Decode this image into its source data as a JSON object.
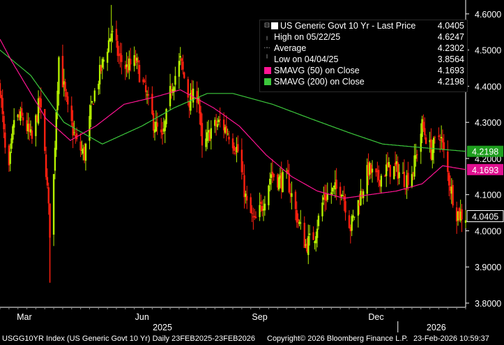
{
  "chart_data": {
    "type": "candlestick",
    "title": "USGG10YR Index (US Generic Govt 10 Yr) Daily 23FEB2025-23FEB2026",
    "ylim": [
      3.8,
      4.65
    ],
    "y_ticks": [
      3.8,
      3.9,
      4.0,
      4.1,
      4.2,
      4.3,
      4.4,
      4.5,
      4.6
    ],
    "y_tick_labels": [
      "3.8000",
      "3.9000",
      "4.0000",
      "4.1000",
      "4.2000",
      "4.3000",
      "4.4000",
      "4.5000",
      "4.6000"
    ],
    "x_range": [
      "2025-02-24",
      "2026-02-23"
    ],
    "x_tick_labels": [
      {
        "label": "Mar",
        "date": "2025-03-15"
      },
      {
        "label": "Jun",
        "date": "2025-06-15"
      },
      {
        "label": "Sep",
        "date": "2025-09-15"
      },
      {
        "label": "Dec",
        "date": "2025-12-15"
      }
    ],
    "x_year_labels": [
      {
        "label": "2025",
        "date": "2025-07-01"
      },
      {
        "label": "2026",
        "date": "2026-01-31"
      }
    ],
    "close_anchors": [
      [
        "2025-02-24",
        4.4
      ],
      [
        "2025-02-28",
        4.22
      ],
      [
        "2025-03-03",
        4.16
      ],
      [
        "2025-03-07",
        4.31
      ],
      [
        "2025-03-14",
        4.31
      ],
      [
        "2025-03-21",
        4.25
      ],
      [
        "2025-03-27",
        4.36
      ],
      [
        "2025-04-01",
        4.17
      ],
      [
        "2025-04-04",
        4.0
      ],
      [
        "2025-04-07",
        4.15
      ],
      [
        "2025-04-09",
        4.34
      ],
      [
        "2025-04-11",
        4.48
      ],
      [
        "2025-04-18",
        4.33
      ],
      [
        "2025-04-25",
        4.24
      ],
      [
        "2025-05-01",
        4.21
      ],
      [
        "2025-05-08",
        4.37
      ],
      [
        "2025-05-15",
        4.46
      ],
      [
        "2025-05-22",
        4.55
      ],
      [
        "2025-05-28",
        4.48
      ],
      [
        "2025-06-03",
        4.45
      ],
      [
        "2025-06-10",
        4.47
      ],
      [
        "2025-06-17",
        4.39
      ],
      [
        "2025-06-24",
        4.3
      ],
      [
        "2025-07-01",
        4.25
      ],
      [
        "2025-07-08",
        4.4
      ],
      [
        "2025-07-15",
        4.47
      ],
      [
        "2025-07-22",
        4.36
      ],
      [
        "2025-07-29",
        4.38
      ],
      [
        "2025-08-01",
        4.22
      ],
      [
        "2025-08-08",
        4.28
      ],
      [
        "2025-08-15",
        4.3
      ],
      [
        "2025-08-22",
        4.27
      ],
      [
        "2025-08-29",
        4.22
      ],
      [
        "2025-09-05",
        4.07
      ],
      [
        "2025-09-11",
        4.02
      ],
      [
        "2025-09-17",
        4.07
      ],
      [
        "2025-09-24",
        4.16
      ],
      [
        "2025-09-30",
        4.14
      ],
      [
        "2025-10-07",
        4.14
      ],
      [
        "2025-10-14",
        4.04
      ],
      [
        "2025-10-21",
        3.96
      ],
      [
        "2025-10-28",
        3.99
      ],
      [
        "2025-11-04",
        4.09
      ],
      [
        "2025-11-11",
        4.11
      ],
      [
        "2025-11-18",
        4.12
      ],
      [
        "2025-11-25",
        4.01
      ],
      [
        "2025-12-02",
        4.09
      ],
      [
        "2025-12-09",
        4.17
      ],
      [
        "2025-12-16",
        4.14
      ],
      [
        "2025-12-23",
        4.17
      ],
      [
        "2025-12-31",
        4.17
      ],
      [
        "2026-01-07",
        4.14
      ],
      [
        "2026-01-13",
        4.17
      ],
      [
        "2026-01-20",
        4.29
      ],
      [
        "2026-01-27",
        4.22
      ],
      [
        "2026-02-03",
        4.27
      ],
      [
        "2026-02-10",
        4.14
      ],
      [
        "2026-02-16",
        4.05
      ],
      [
        "2026-02-23",
        4.0405
      ]
    ],
    "sma200_anchors": [
      [
        "2025-02-24",
        4.5
      ],
      [
        "2025-03-20",
        4.43
      ],
      [
        "2025-04-15",
        4.3
      ],
      [
        "2025-05-15",
        4.24
      ],
      [
        "2025-06-15",
        4.29
      ],
      [
        "2025-07-10",
        4.34
      ],
      [
        "2025-08-05",
        4.38
      ],
      [
        "2025-08-25",
        4.38
      ],
      [
        "2025-09-25",
        4.35
      ],
      [
        "2025-10-25",
        4.31
      ],
      [
        "2025-11-25",
        4.27
      ],
      [
        "2025-12-20",
        4.24
      ],
      [
        "2026-01-20",
        4.23
      ],
      [
        "2026-02-23",
        4.2198
      ]
    ],
    "sma50_anchors": [
      [
        "2025-02-24",
        4.53
      ],
      [
        "2025-03-05",
        4.47
      ],
      [
        "2025-04-01",
        4.31
      ],
      [
        "2025-04-20",
        4.25
      ],
      [
        "2025-05-10",
        4.29
      ],
      [
        "2025-06-01",
        4.35
      ],
      [
        "2025-06-25",
        4.37
      ],
      [
        "2025-07-15",
        4.39
      ],
      [
        "2025-08-10",
        4.34
      ],
      [
        "2025-08-30",
        4.29
      ],
      [
        "2025-09-20",
        4.21
      ],
      [
        "2025-10-10",
        4.15
      ],
      [
        "2025-10-30",
        4.11
      ],
      [
        "2025-11-20",
        4.09
      ],
      [
        "2025-12-10",
        4.1
      ],
      [
        "2025-12-31",
        4.11
      ],
      [
        "2026-01-20",
        4.13
      ],
      [
        "2026-02-05",
        4.18
      ],
      [
        "2026-02-23",
        4.1693
      ]
    ],
    "series": [
      {
        "name": "US Generic Govt 10 Yr - Last Price",
        "color": "#ffffff",
        "value": "4.0405"
      },
      {
        "name": "SMAVG (50)  on Close",
        "color": "#ff1493",
        "value": "4.1693"
      },
      {
        "name": "SMAVG (200)  on Close",
        "color": "#3cc83c",
        "value": "4.2198"
      }
    ],
    "up_color": "#b4f000",
    "down_color": "#ff2010",
    "price_tags": [
      {
        "value": 4.2198,
        "label": "4.2198",
        "bg": "#1e9e1e",
        "fg": "#ffffff"
      },
      {
        "value": 4.1693,
        "label": "4.1693",
        "bg": "#e01090",
        "fg": "#ffffff"
      },
      {
        "value": 4.0405,
        "label": "4.0405",
        "bg": "#000000",
        "fg": "#ffffff",
        "border": "#ffffff"
      }
    ]
  },
  "legend": {
    "last_label": "US Generic Govt 10 Yr - Last Price",
    "last_value": "4.0405",
    "high_label": "High on 05/22/25",
    "high_value": "4.6247",
    "avg_label": "Average",
    "avg_value": "4.2302",
    "low_label": "Low on 04/04/25",
    "low_value": "3.8564",
    "sma50_label": "SMAVG (50)  on Close",
    "sma50_value": "4.1693",
    "sma200_label": "SMAVG (200)  on Close",
    "sma200_value": "4.2198"
  },
  "footer": {
    "ticker_text": "USGG10YR Index (US Generic Govt 10 Yr) Daily 23FEB2025-23FEB2026",
    "copyright": "Copyright© 2026 Bloomberg Finance L.P.",
    "timestamp": "23-Feb-2026 10:59:37"
  }
}
